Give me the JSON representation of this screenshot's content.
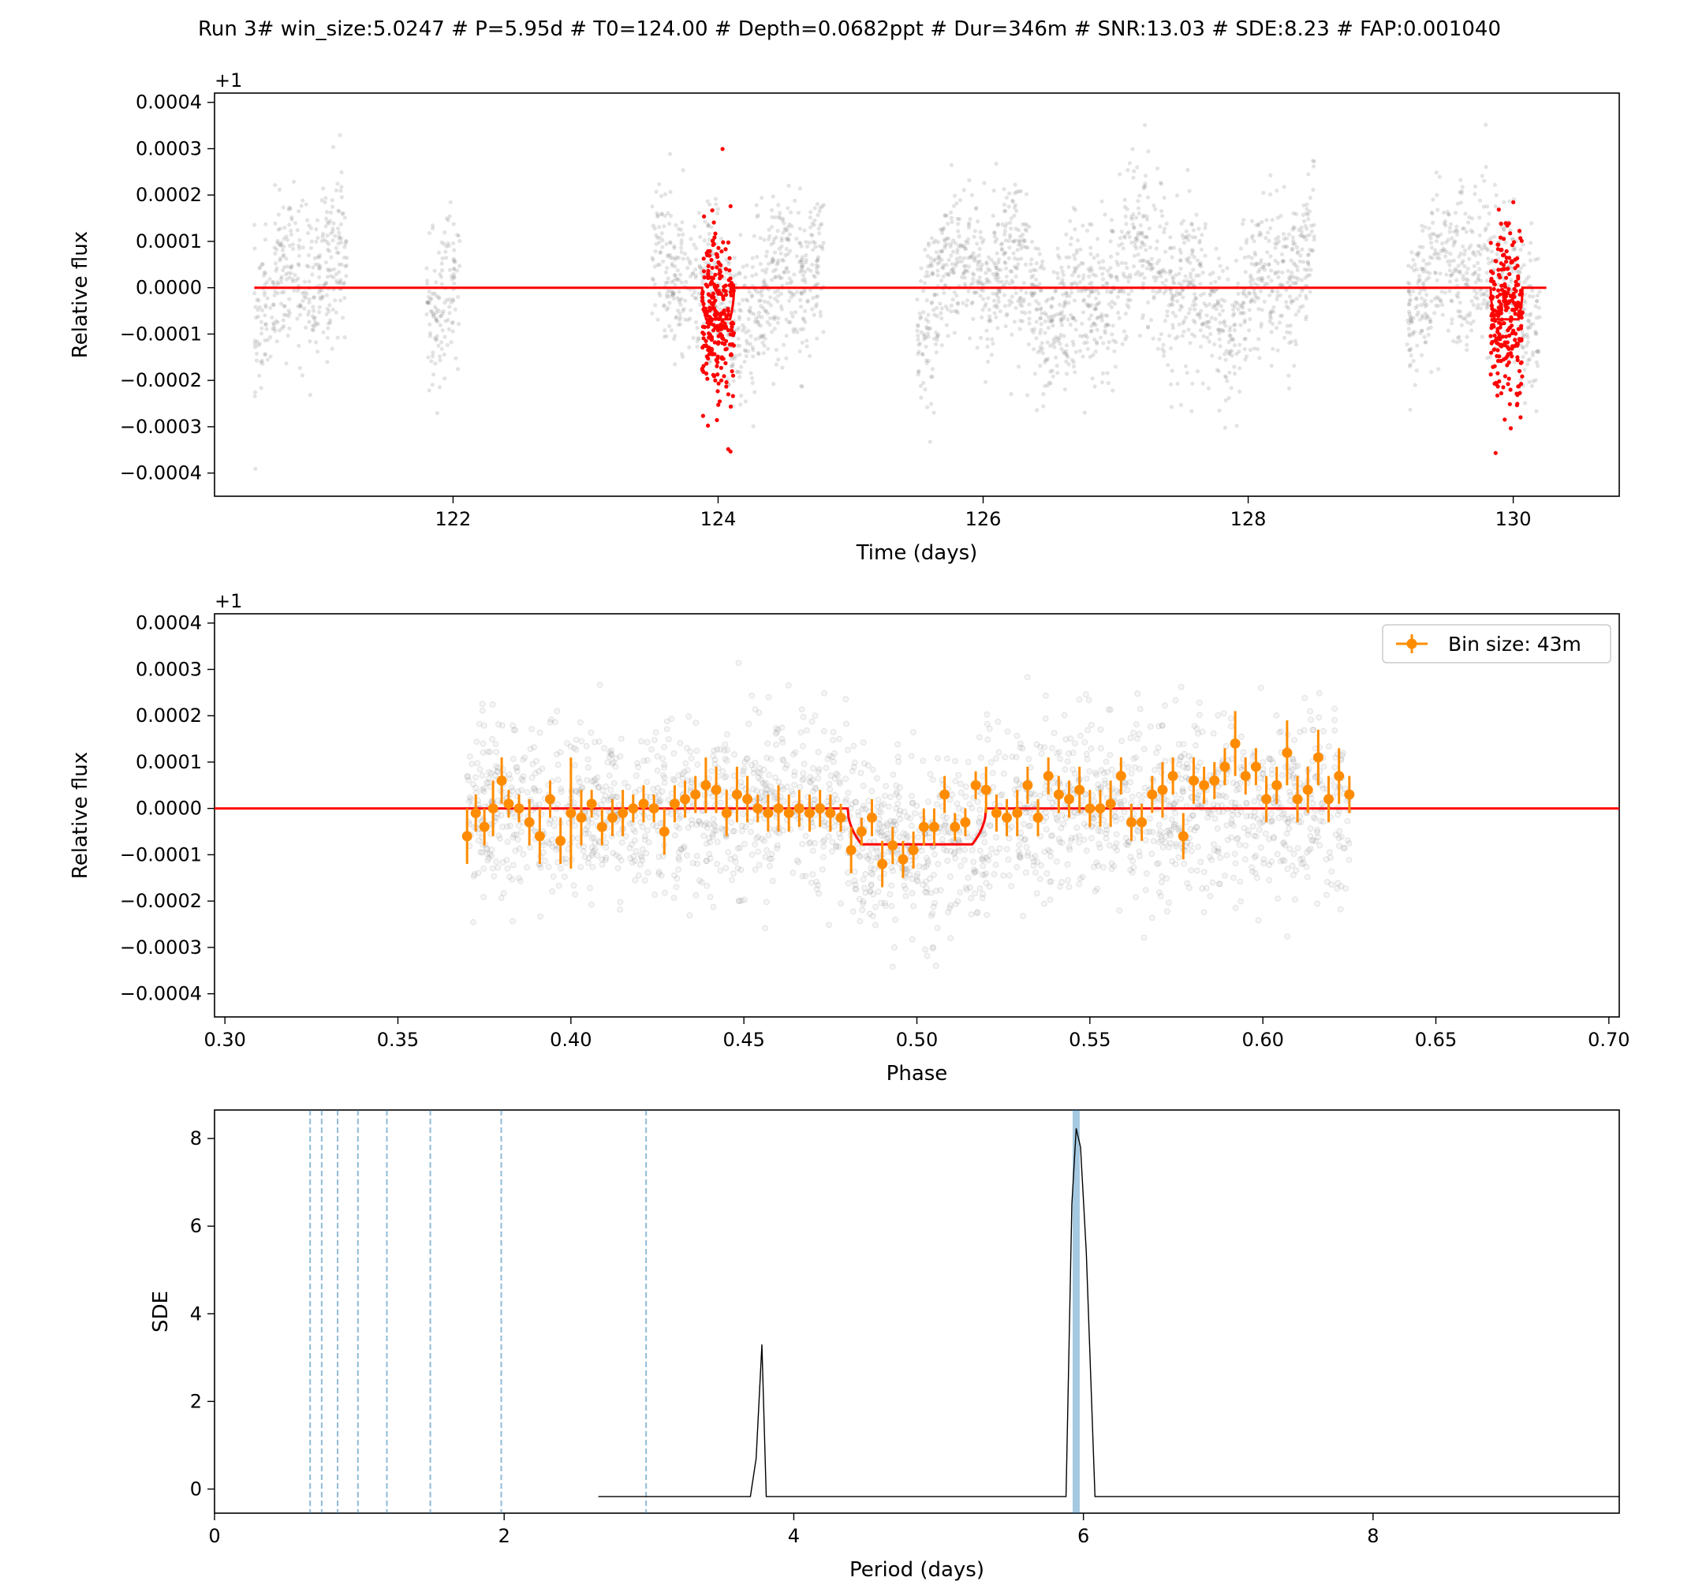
{
  "figure_title": "Run 3# win_size:5.0247 # P=5.95d # T0=124.00 # Depth=0.0682ppt # Dur=346m # SNR:13.03 # SDE:8.23 # FAP:0.001040",
  "colors": {
    "raw_points": "#808080",
    "in_transit": "#ff0000",
    "model": "#ff0000",
    "binned": "#ff8c00",
    "periodogram": "#000000",
    "period_marker": "#1f77b4"
  },
  "chart_data": [
    {
      "type": "scatter",
      "name": "light-curve",
      "xlabel": "Time (days)",
      "ylabel": "Relative flux",
      "y_offset_label": "+1",
      "xlim": [
        120.2,
        130.8
      ],
      "ylim": [
        -0.00045,
        0.00042
      ],
      "xticks": [
        122,
        124,
        126,
        128,
        130
      ],
      "xtick_labels": [
        "122",
        "124",
        "126",
        "128",
        "130"
      ],
      "yticks": [
        -0.0004,
        -0.0003,
        -0.0002,
        -0.0001,
        0.0,
        0.0001,
        0.0002,
        0.0003,
        0.0004
      ],
      "ytick_labels": [
        "−0.0004",
        "−0.0003",
        "−0.0002",
        "−0.0001",
        "0.0000",
        "0.0001",
        "0.0002",
        "0.0003",
        "0.0004"
      ],
      "segments": [
        [
          120.5,
          121.2
        ],
        [
          121.8,
          122.05
        ],
        [
          123.5,
          124.8
        ],
        [
          125.5,
          128.5
        ],
        [
          129.2,
          130.2
        ]
      ],
      "in_transit_windows": [
        [
          123.88,
          124.12
        ],
        [
          129.83,
          130.07
        ]
      ],
      "model": {
        "baseline": 0.0,
        "depth": -6.82e-05,
        "transit_centers": [
          124.0,
          129.95
        ],
        "duration_days": 0.24,
        "x_range": [
          120.5,
          130.25
        ]
      }
    },
    {
      "type": "scatter",
      "name": "phase-folded",
      "xlabel": "Phase",
      "ylabel": "Relative flux",
      "y_offset_label": "+1",
      "xlim": [
        0.297,
        0.703
      ],
      "ylim": [
        -0.00045,
        0.00042
      ],
      "xticks": [
        0.3,
        0.35,
        0.4,
        0.45,
        0.5,
        0.55,
        0.6,
        0.65,
        0.7
      ],
      "xtick_labels": [
        "0.30",
        "0.35",
        "0.40",
        "0.45",
        "0.50",
        "0.55",
        "0.60",
        "0.65",
        "0.70"
      ],
      "yticks": [
        -0.0004,
        -0.0003,
        -0.0002,
        -0.0001,
        0.0,
        0.0001,
        0.0002,
        0.0003,
        0.0004
      ],
      "ytick_labels": [
        "−0.0004",
        "−0.0003",
        "−0.0002",
        "−0.0001",
        "0.0000",
        "0.0001",
        "0.0002",
        "0.0003",
        "0.0004"
      ],
      "legend": {
        "label": "Bin size: 43m",
        "placement": "top-right"
      },
      "phase_range": [
        0.37,
        0.625
      ],
      "model": {
        "baseline": 0.0,
        "depth": -7.75e-05,
        "ingress": 0.48,
        "egress": 0.52
      },
      "binned": {
        "x": [
          0.37,
          0.3725,
          0.375,
          0.3775,
          0.38,
          0.382,
          0.385,
          0.388,
          0.391,
          0.394,
          0.397,
          0.4,
          0.403,
          0.406,
          0.409,
          0.412,
          0.415,
          0.418,
          0.421,
          0.424,
          0.427,
          0.43,
          0.433,
          0.436,
          0.439,
          0.442,
          0.445,
          0.448,
          0.451,
          0.454,
          0.457,
          0.46,
          0.463,
          0.466,
          0.469,
          0.472,
          0.475,
          0.478,
          0.481,
          0.484,
          0.487,
          0.49,
          0.493,
          0.496,
          0.499,
          0.502,
          0.505,
          0.508,
          0.511,
          0.514,
          0.517,
          0.52,
          0.523,
          0.526,
          0.529,
          0.532,
          0.535,
          0.538,
          0.541,
          0.544,
          0.547,
          0.55,
          0.553,
          0.556,
          0.559,
          0.562,
          0.565,
          0.568,
          0.571,
          0.574,
          0.577,
          0.58,
          0.583,
          0.586,
          0.589,
          0.592,
          0.595,
          0.598,
          0.601,
          0.604,
          0.607,
          0.61,
          0.613,
          0.616,
          0.619,
          0.622,
          0.625
        ],
        "y": [
          -6e-05,
          -1e-05,
          -4e-05,
          0.0,
          6e-05,
          1e-05,
          0.0,
          -3e-05,
          -6e-05,
          2e-05,
          -7e-05,
          -1e-05,
          -2e-05,
          1e-05,
          -4e-05,
          -2e-05,
          -1e-05,
          0.0,
          1e-05,
          0.0,
          -5e-05,
          1e-05,
          2e-05,
          3e-05,
          5e-05,
          4e-05,
          -1e-05,
          3e-05,
          2e-05,
          0.0,
          -1e-05,
          0.0,
          -1e-05,
          0.0,
          -1e-05,
          0.0,
          -1e-05,
          -2e-05,
          -9e-05,
          -5e-05,
          -2e-05,
          -0.00012,
          -8e-05,
          -0.00011,
          -9e-05,
          -4e-05,
          -4e-05,
          3e-05,
          -4e-05,
          -3e-05,
          5e-05,
          4e-05,
          -1e-05,
          -2e-05,
          -1e-05,
          5e-05,
          -2e-05,
          7e-05,
          3e-05,
          2e-05,
          4e-05,
          0.0,
          0.0,
          1e-05,
          7e-05,
          -3e-05,
          -3e-05,
          3e-05,
          4e-05,
          7e-05,
          -6e-05,
          6e-05,
          5e-05,
          6e-05,
          9e-05,
          0.00014,
          7e-05,
          9e-05,
          2e-05,
          5e-05,
          0.00012,
          2e-05,
          4e-05,
          0.00011,
          2e-05,
          7e-05,
          3e-05
        ],
        "yerr": [
          6e-05,
          4e-05,
          4e-05,
          6e-05,
          5e-05,
          3e-05,
          3e-05,
          5e-05,
          6e-05,
          4e-05,
          5e-05,
          0.00012,
          6e-05,
          3e-05,
          4e-05,
          4e-05,
          5e-05,
          3e-05,
          4e-05,
          3e-05,
          5e-05,
          4e-05,
          4e-05,
          4e-05,
          6e-05,
          5e-05,
          5e-05,
          6e-05,
          5e-05,
          3e-05,
          4e-05,
          5e-05,
          4e-05,
          4e-05,
          4e-05,
          4e-05,
          4e-05,
          3e-05,
          5e-05,
          3e-05,
          4e-05,
          5e-05,
          4e-05,
          4e-05,
          4e-05,
          4e-05,
          4e-05,
          4e-05,
          3e-05,
          3e-05,
          3e-05,
          5e-05,
          4e-05,
          4e-05,
          5e-05,
          4e-05,
          4e-05,
          4e-05,
          4e-05,
          4e-05,
          5e-05,
          4e-05,
          4e-05,
          5e-05,
          4e-05,
          4e-05,
          4e-05,
          4e-05,
          6e-05,
          4e-05,
          5e-05,
          5e-05,
          4e-05,
          4e-05,
          4e-05,
          7e-05,
          4e-05,
          4e-05,
          5e-05,
          4e-05,
          7e-05,
          5e-05,
          5e-05,
          6e-05,
          5e-05,
          6e-05,
          4e-05
        ]
      }
    },
    {
      "type": "line",
      "name": "periodogram",
      "xlabel": "Period (days)",
      "ylabel": "SDE",
      "xlim": [
        0.0,
        9.7
      ],
      "ylim": [
        -0.55,
        8.65
      ],
      "xticks": [
        0,
        2,
        4,
        6,
        8
      ],
      "xtick_labels": [
        "0",
        "2",
        "4",
        "6",
        "8"
      ],
      "yticks": [
        0,
        2,
        4,
        6,
        8
      ],
      "ytick_labels": [
        "0",
        "2",
        "4",
        "6",
        "8"
      ],
      "x": [
        2.65,
        3.7,
        3.74,
        3.78,
        3.81,
        5.88,
        5.92,
        5.95,
        5.98,
        6.02,
        6.08,
        9.7
      ],
      "y": [
        -0.17,
        -0.17,
        0.7,
        3.3,
        -0.17,
        -0.17,
        6.5,
        8.23,
        7.8,
        5.4,
        -0.17,
        -0.17
      ],
      "best_period": 5.95,
      "harmonics": [
        0.66,
        0.74,
        0.85,
        0.99,
        1.19,
        1.49,
        1.98,
        2.98
      ]
    }
  ]
}
